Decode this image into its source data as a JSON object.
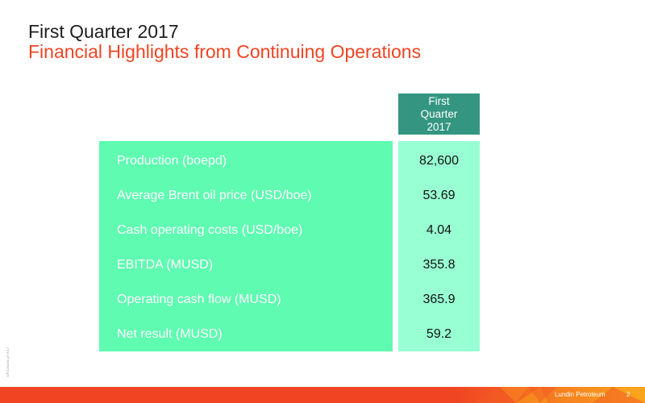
{
  "slide": {
    "title": "First Quarter 2017",
    "subtitle": "Financial Highlights from Continuing Operations"
  },
  "table": {
    "column_header": "First\nQuarter\n2017",
    "rows": [
      {
        "label": "Production (boepd)",
        "value": "82,600"
      },
      {
        "label": "Average Brent oil price (USD/boe)",
        "value": "53.69"
      },
      {
        "label": "Cash operating costs (USD/boe)",
        "value": "4.04"
      },
      {
        "label": "EBITDA (MUSD)",
        "value": "355.8"
      },
      {
        "label": "Operating cash flow (MUSD)",
        "value": "365.9"
      },
      {
        "label": "Net result (MUSD)",
        "value": "59.2"
      }
    ]
  },
  "footer": {
    "brand": "Lundin Petroleum",
    "page_number": "2",
    "doc_id": "WP/1201/01 p9 IN17"
  },
  "colors": {
    "title": "#1e1e1e",
    "subtitle": "#f04422",
    "header_bg": "#349680",
    "label_panel_bg": "#5efbb1",
    "value_panel_bg": "#98ffd2",
    "footer_bg": "#f04422"
  }
}
